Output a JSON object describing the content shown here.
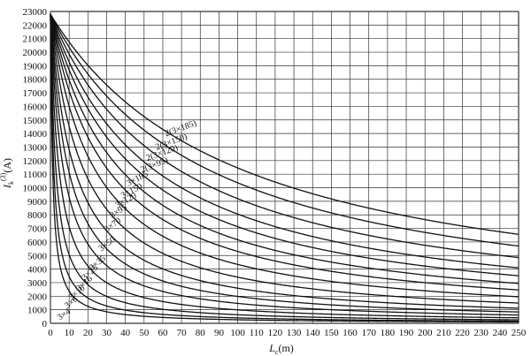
{
  "chart_data": {
    "type": "line",
    "title": "",
    "xlabel": "L_c(m)",
    "xlabel_main": "L",
    "xlabel_sub": "c",
    "xlabel_unit": "(m)",
    "ylabel": "I_k^(3)(A)",
    "ylabel_main": "I",
    "ylabel_sub": "k",
    "ylabel_sup": "(3)",
    "ylabel_unit": "(A)",
    "xlim": [
      0,
      250
    ],
    "ylim": [
      0,
      23000
    ],
    "xticks": [
      0,
      10,
      20,
      30,
      40,
      50,
      60,
      70,
      80,
      90,
      100,
      110,
      120,
      130,
      140,
      150,
      160,
      170,
      180,
      190,
      200,
      210,
      220,
      230,
      240,
      250
    ],
    "yticks": [
      0,
      1000,
      2000,
      3000,
      4000,
      5000,
      6000,
      7000,
      8000,
      9000,
      10000,
      11000,
      12000,
      13000,
      14000,
      15000,
      16000,
      17000,
      18000,
      19000,
      20000,
      21000,
      22000,
      23000
    ],
    "x_grid_step": 10,
    "y_grid_step": 1000,
    "grid": true,
    "line_color": "#111111",
    "grid_color": "#333333",
    "series": [
      {
        "name": "2(3×185)",
        "I0": 22800,
        "k": 0.0099
      },
      {
        "name": "2(3×150)",
        "I0": 22800,
        "k": 0.012
      },
      {
        "name": "2(3×120)",
        "I0": 22800,
        "k": 0.0148
      },
      {
        "name": "2(3×95)",
        "I0": 22800,
        "k": 0.0183
      },
      {
        "name": "3×185",
        "I0": 22800,
        "k": 0.022
      },
      {
        "name": "3×150",
        "I0": 22800,
        "k": 0.027
      },
      {
        "name": "3×120",
        "I0": 22800,
        "k": 0.033
      },
      {
        "name": "3×95",
        "I0": 22800,
        "k": 0.0425
      },
      {
        "name": "3×70",
        "I0": 22800,
        "k": 0.057
      },
      {
        "name": "3×50",
        "I0": 22800,
        "k": 0.078
      },
      {
        "name": "3×35",
        "I0": 22800,
        "k": 0.105
      },
      {
        "name": "3×25",
        "I0": 22800,
        "k": 0.145
      },
      {
        "name": "3×16",
        "I0": 22800,
        "k": 0.22
      },
      {
        "name": "3×10",
        "I0": 22800,
        "k": 0.35
      },
      {
        "name": "3×6",
        "I0": 22800,
        "k": 0.56
      },
      {
        "name": "3×4",
        "I0": 22800,
        "k": 0.86
      }
    ],
    "labels": [
      {
        "text": "2(3×185)",
        "x": 70,
        "y": 14200,
        "angle": -20
      },
      {
        "text": "2(3×150)",
        "x": 65,
        "y": 13200,
        "angle": -20
      },
      {
        "text": "2(3×120)",
        "x": 60,
        "y": 12400,
        "angle": -20
      },
      {
        "text": "2(3×95)",
        "x": 56,
        "y": 11500,
        "angle": -22
      },
      {
        "text": "3×185",
        "x": 47,
        "y": 10500,
        "angle": -28
      },
      {
        "text": "3×150",
        "x": 44,
        "y": 9600,
        "angle": -28
      },
      {
        "text": "3×120",
        "x": 41,
        "y": 8900,
        "angle": -30
      },
      {
        "text": "3×95",
        "x": 37,
        "y": 8100,
        "angle": -32
      },
      {
        "text": "3×70",
        "x": 34,
        "y": 7100,
        "angle": -35
      },
      {
        "text": "3×50",
        "x": 31,
        "y": 5700,
        "angle": -38
      },
      {
        "text": "3×35",
        "x": 26,
        "y": 4300,
        "angle": -40
      },
      {
        "text": "3×25",
        "x": 22,
        "y": 3600,
        "angle": -42
      },
      {
        "text": "3×16",
        "x": 19,
        "y": 2800,
        "angle": -42
      },
      {
        "text": "3×10",
        "x": 15,
        "y": 2100,
        "angle": -40
      },
      {
        "text": "3×6",
        "x": 12,
        "y": 1400,
        "angle": -40
      },
      {
        "text": "3×4",
        "x": 8,
        "y": 500,
        "angle": -35
      }
    ]
  }
}
